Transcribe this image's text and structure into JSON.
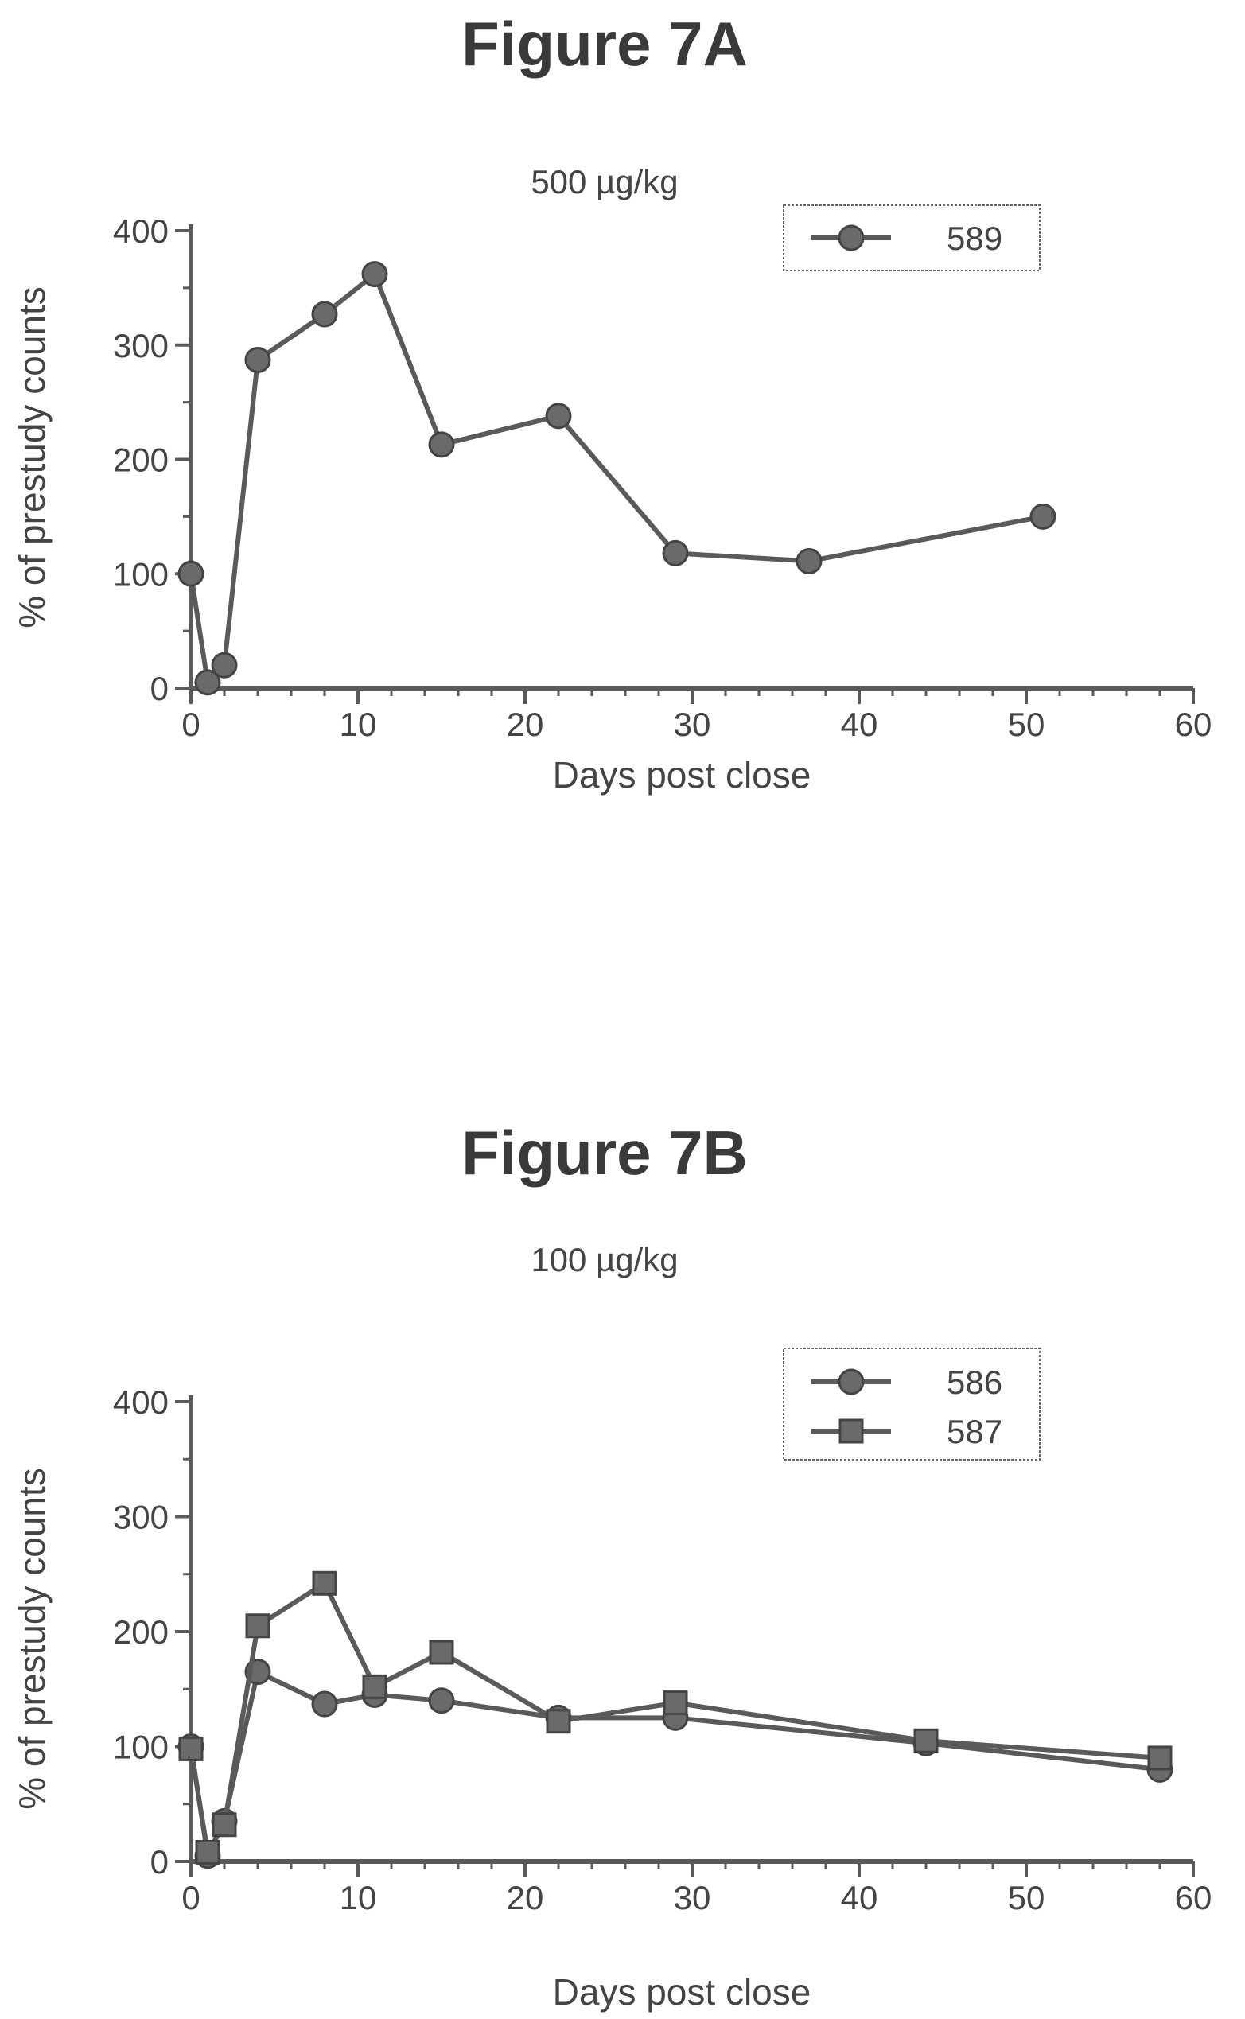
{
  "chart_data": [
    {
      "type": "line",
      "title": "Figure 7A",
      "subtitle": "500 µg/kg",
      "xlabel": "Days post close",
      "ylabel": "% of prestudy counts",
      "xlim": [
        0,
        60
      ],
      "ylim": [
        0,
        400
      ],
      "x_ticks": [
        "0",
        "10",
        "20",
        "30",
        "40",
        "50",
        "60"
      ],
      "y_ticks": [
        "0",
        "100",
        "200",
        "300",
        "400"
      ],
      "grid": false,
      "legend_position": "top-right",
      "series": [
        {
          "name": "589",
          "marker": "circle",
          "x": [
            0,
            1,
            2,
            4,
            8,
            11,
            15,
            22,
            29,
            37,
            51
          ],
          "y": [
            100,
            5,
            20,
            287,
            327,
            362,
            213,
            238,
            118,
            111,
            150
          ]
        }
      ]
    },
    {
      "type": "line",
      "title": "Figure 7B",
      "subtitle": "100 µg/kg",
      "xlabel": "Days post close",
      "ylabel": "% of prestudy counts",
      "xlim": [
        0,
        60
      ],
      "ylim": [
        0,
        400
      ],
      "x_ticks": [
        "0",
        "10",
        "20",
        "30",
        "40",
        "50",
        "60"
      ],
      "y_ticks": [
        "0",
        "100",
        "200",
        "300",
        "400"
      ],
      "grid": false,
      "legend_position": "top-right",
      "series": [
        {
          "name": "586",
          "marker": "circle",
          "x": [
            0,
            1,
            2,
            4,
            8,
            11,
            15,
            22,
            29,
            44,
            58
          ],
          "y": [
            100,
            5,
            35,
            165,
            137,
            145,
            140,
            125,
            125,
            103,
            80
          ]
        },
        {
          "name": "587",
          "marker": "square",
          "x": [
            0,
            1,
            2,
            4,
            8,
            11,
            15,
            22,
            29,
            44,
            58
          ],
          "y": [
            98,
            8,
            32,
            205,
            242,
            152,
            182,
            122,
            138,
            105,
            90
          ]
        }
      ]
    }
  ]
}
